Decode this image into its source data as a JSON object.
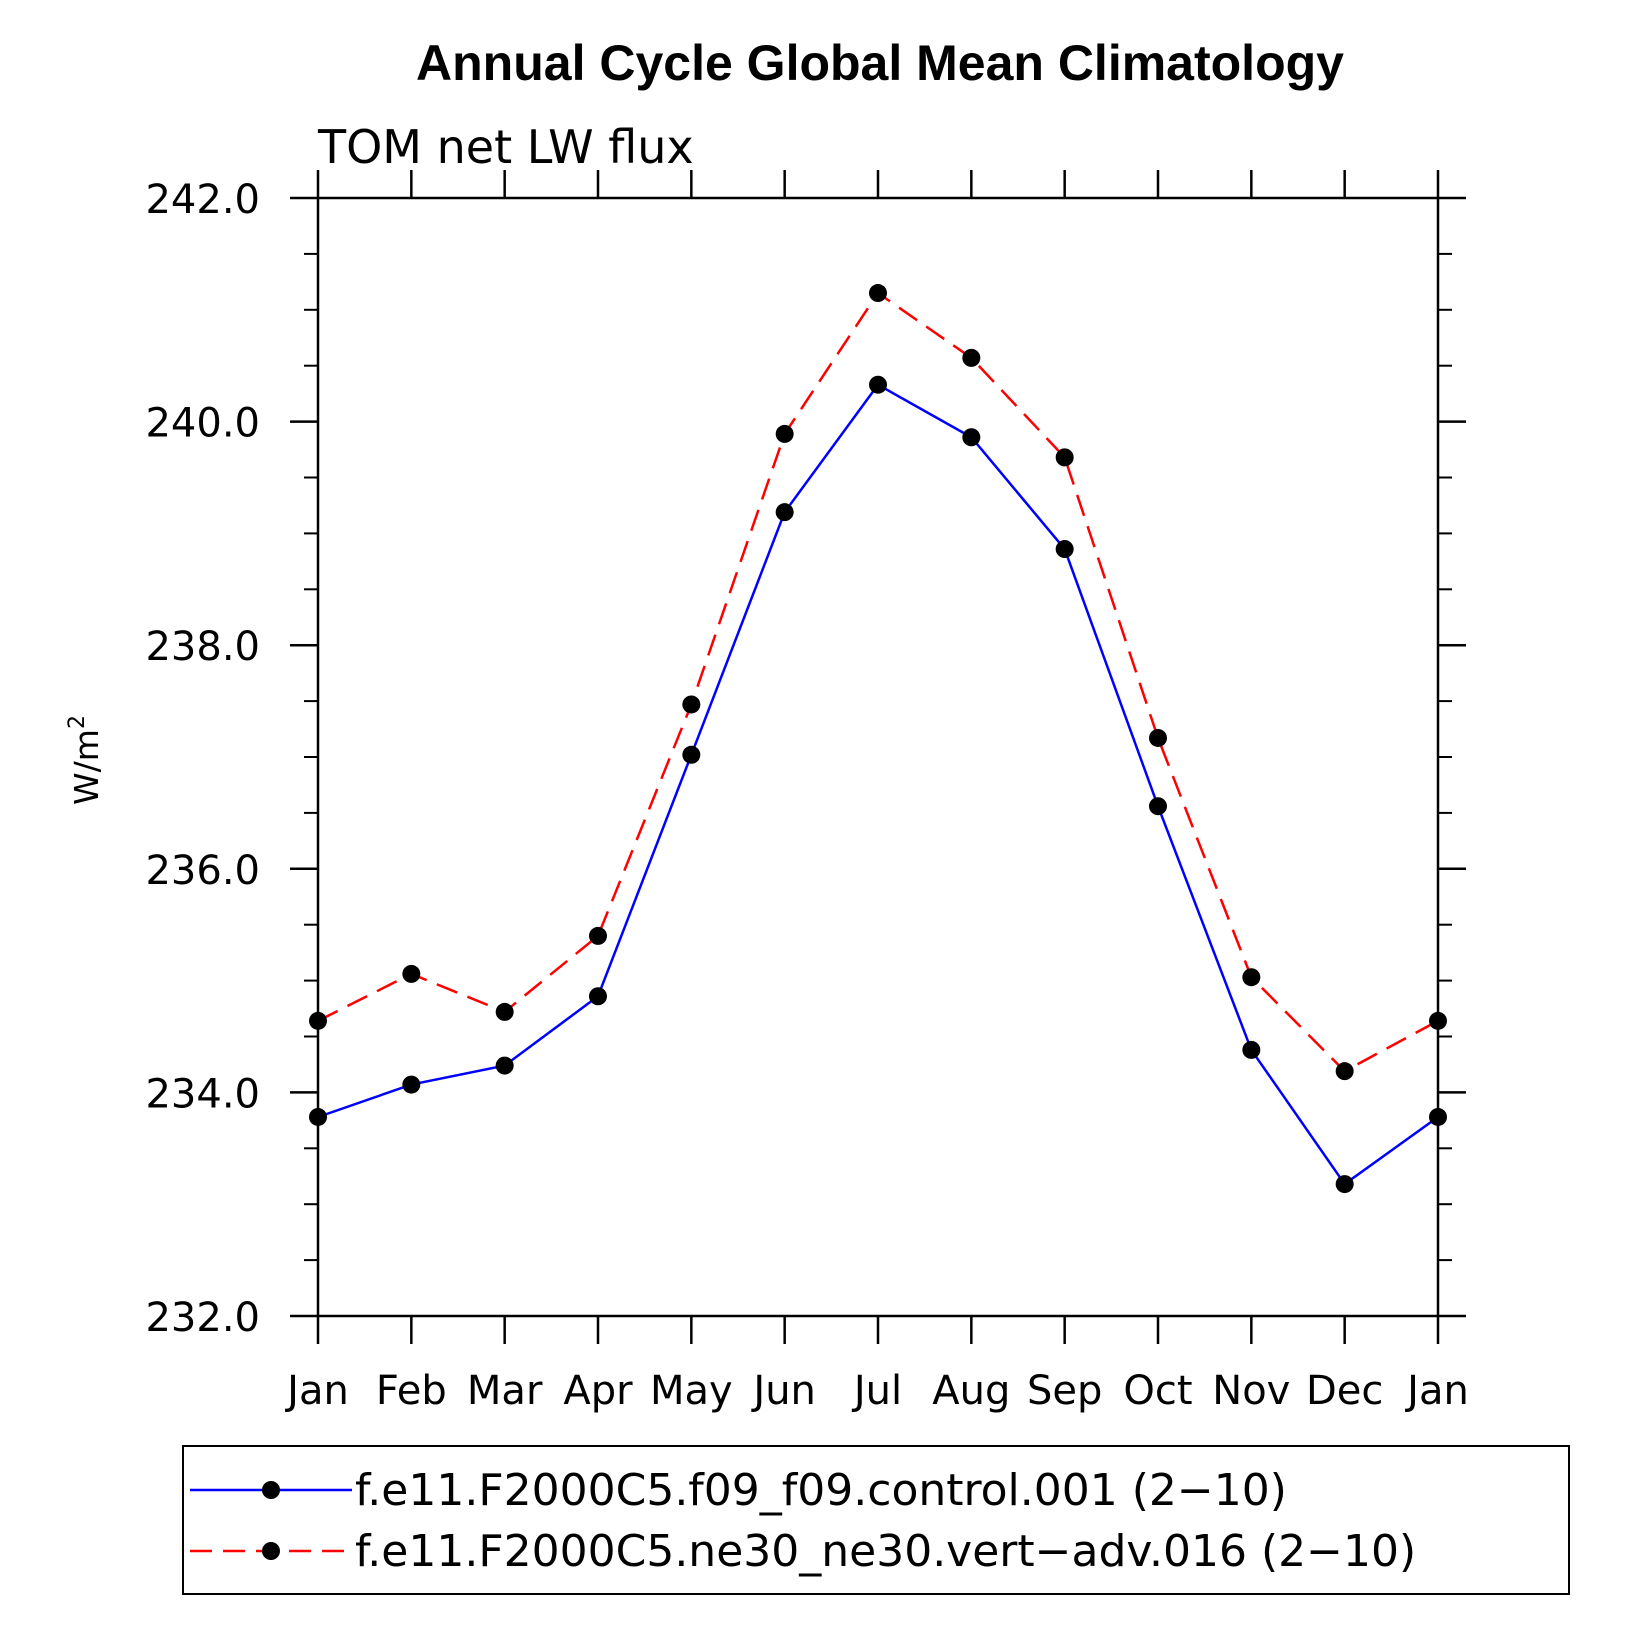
{
  "chart_data": {
    "type": "line",
    "title": "Annual Cycle Global Mean Climatology",
    "subtitle": "TOM net LW flux",
    "ylabel": "W/m",
    "ylabel_sup": "2",
    "xlabel": "",
    "categories": [
      "Jan",
      "Feb",
      "Mar",
      "Apr",
      "May",
      "Jun",
      "Jul",
      "Aug",
      "Sep",
      "Oct",
      "Nov",
      "Dec",
      "Jan"
    ],
    "ylim": [
      232.0,
      242.0
    ],
    "yticks": [
      232.0,
      234.0,
      236.0,
      238.0,
      240.0,
      242.0
    ],
    "ytick_labels": [
      "232.0",
      "234.0",
      "236.0",
      "238.0",
      "240.0",
      "242.0"
    ],
    "grid": false,
    "legend_position": "bottom",
    "series": [
      {
        "name": "f.e11.F2000C5.f09_f09.control.001 (2−10)",
        "color": "#0000ff",
        "line_style": "solid",
        "marker": "filled-circle",
        "values": [
          233.78,
          234.07,
          234.24,
          234.86,
          237.02,
          239.19,
          240.33,
          239.86,
          238.86,
          236.56,
          234.38,
          233.18,
          233.78
        ]
      },
      {
        "name": "f.e11.F2000C5.ne30_ne30.vert−adv.016 (2−10)",
        "color": "#ff0000",
        "line_style": "dashed",
        "marker": "filled-circle",
        "values": [
          234.64,
          235.06,
          234.72,
          235.4,
          237.47,
          239.89,
          241.15,
          240.57,
          239.68,
          237.17,
          235.03,
          234.19,
          234.64
        ]
      }
    ]
  }
}
